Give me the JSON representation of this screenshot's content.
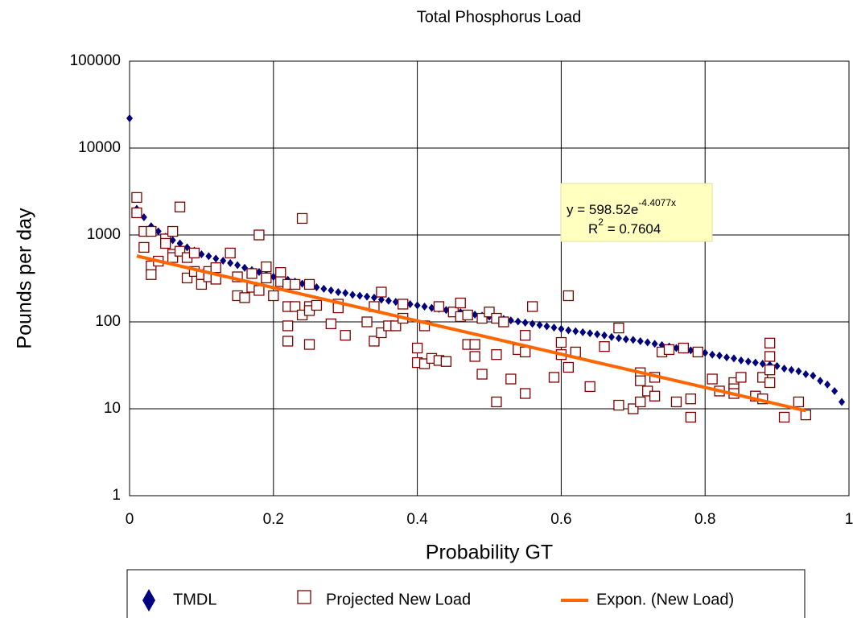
{
  "chart_data": {
    "type": "scatter",
    "title": "Total Phosphorus Load",
    "x_label": "Probability GT",
    "y_label": "Pounds per day",
    "xlim": [
      0,
      1
    ],
    "xticks": [
      0,
      0.2,
      0.4,
      0.6,
      0.8,
      1
    ],
    "ylim": [
      1,
      100000
    ],
    "yticks": [
      1,
      10,
      100,
      1000,
      10000,
      100000
    ],
    "log_y": true,
    "grid": true,
    "legend_position": "bottom",
    "annotation": {
      "equation": "y = 598.52e",
      "exponent": "-4.4077x",
      "r_label": "R",
      "r_power": "2",
      "r_value": " = 0.7604"
    },
    "series": [
      {
        "name": "TMDL",
        "color": "#000080",
        "marker": "diamond",
        "x": [
          0,
          0.01,
          0.02,
          0.03,
          0.04,
          0.05,
          0.06,
          0.07,
          0.08,
          0.09,
          0.1,
          0.11,
          0.12,
          0.13,
          0.14,
          0.15,
          0.16,
          0.17,
          0.18,
          0.19,
          0.2,
          0.21,
          0.22,
          0.23,
          0.24,
          0.25,
          0.26,
          0.27,
          0.28,
          0.29,
          0.3,
          0.31,
          0.32,
          0.33,
          0.34,
          0.35,
          0.36,
          0.37,
          0.38,
          0.39,
          0.4,
          0.41,
          0.42,
          0.43,
          0.44,
          0.45,
          0.46,
          0.47,
          0.48,
          0.49,
          0.5,
          0.51,
          0.52,
          0.53,
          0.54,
          0.55,
          0.56,
          0.57,
          0.58,
          0.59,
          0.6,
          0.61,
          0.62,
          0.63,
          0.64,
          0.65,
          0.66,
          0.67,
          0.68,
          0.69,
          0.7,
          0.71,
          0.72,
          0.73,
          0.74,
          0.75,
          0.76,
          0.77,
          0.78,
          0.79,
          0.8,
          0.81,
          0.82,
          0.83,
          0.84,
          0.85,
          0.86,
          0.87,
          0.88,
          0.89,
          0.9,
          0.91,
          0.92,
          0.93,
          0.94,
          0.95,
          0.96,
          0.97,
          0.98,
          0.99
        ],
        "values": [
          22000,
          2000,
          1600,
          1260,
          1100,
          955,
          870,
          800,
          720,
          660,
          600,
          570,
          535,
          505,
          475,
          450,
          420,
          395,
          375,
          350,
          330,
          320,
          305,
          290,
          275,
          265,
          250,
          240,
          230,
          220,
          215,
          205,
          200,
          195,
          190,
          180,
          175,
          170,
          165,
          160,
          155,
          150,
          145,
          141,
          137,
          133,
          129,
          125,
          121,
          118,
          115,
          111,
          108,
          104,
          101,
          98,
          95,
          92,
          89,
          86,
          83,
          80,
          78,
          76,
          74,
          72,
          70,
          67,
          65,
          63,
          62,
          60,
          58,
          56,
          54,
          52,
          50,
          48,
          47,
          45,
          44,
          42,
          41,
          39,
          38,
          36,
          35,
          34,
          33,
          32,
          31,
          29,
          28,
          27,
          25,
          24,
          21,
          19,
          16,
          12
        ]
      },
      {
        "name": "Projected New Load",
        "color": "#800000",
        "marker": "square",
        "x": [
          0.01,
          0.01,
          0.02,
          0.02,
          0.03,
          0.03,
          0.03,
          0.04,
          0.05,
          0.05,
          0.06,
          0.06,
          0.06,
          0.07,
          0.07,
          0.08,
          0.08,
          0.09,
          0.09,
          0.1,
          0.1,
          0.11,
          0.11,
          0.12,
          0.12,
          0.14,
          0.15,
          0.15,
          0.16,
          0.17,
          0.17,
          0.18,
          0.18,
          0.19,
          0.19,
          0.2,
          0.21,
          0.21,
          0.22,
          0.22,
          0.22,
          0.22,
          0.23,
          0.23,
          0.24,
          0.24,
          0.25,
          0.25,
          0.25,
          0.25,
          0.26,
          0.28,
          0.29,
          0.29,
          0.3,
          0.33,
          0.34,
          0.34,
          0.35,
          0.35,
          0.36,
          0.37,
          0.38,
          0.38,
          0.4,
          0.4,
          0.41,
          0.41,
          0.42,
          0.43,
          0.43,
          0.44,
          0.45,
          0.46,
          0.46,
          0.47,
          0.47,
          0.48,
          0.48,
          0.49,
          0.49,
          0.5,
          0.51,
          0.51,
          0.51,
          0.52,
          0.53,
          0.54,
          0.55,
          0.55,
          0.55,
          0.56,
          0.59,
          0.6,
          0.6,
          0.61,
          0.61,
          0.62,
          0.64,
          0.66,
          0.68,
          0.68,
          0.7,
          0.71,
          0.71,
          0.71,
          0.72,
          0.73,
          0.73,
          0.74,
          0.75,
          0.76,
          0.77,
          0.78,
          0.78,
          0.79,
          0.81,
          0.82,
          0.84,
          0.84,
          0.84,
          0.85,
          0.87,
          0.88,
          0.88,
          0.89,
          0.89,
          0.89,
          0.89,
          0.91,
          0.93,
          0.94
        ],
        "values": [
          2700,
          1800,
          1100,
          720,
          1100,
          440,
          350,
          500,
          900,
          800,
          1100,
          600,
          550,
          2100,
          650,
          550,
          320,
          620,
          380,
          350,
          270,
          380,
          330,
          420,
          310,
          620,
          330,
          200,
          190,
          360,
          250,
          1000,
          230,
          430,
          320,
          200,
          370,
          290,
          270,
          150,
          90,
          60,
          150,
          270,
          1550,
          120,
          270,
          150,
          135,
          55,
          155,
          95,
          160,
          145,
          70,
          100,
          150,
          60,
          220,
          75,
          90,
          90,
          160,
          110,
          50,
          34,
          33,
          90,
          38,
          36,
          150,
          35,
          130,
          165,
          115,
          120,
          55,
          55,
          40,
          110,
          25,
          130,
          110,
          42,
          12,
          100,
          22,
          48,
          70,
          45,
          15,
          150,
          23,
          58,
          42,
          200,
          30,
          45,
          18,
          52,
          85,
          11,
          10,
          26,
          21,
          12,
          16,
          14,
          23,
          45,
          48,
          12,
          50,
          13,
          8,
          45,
          22,
          16,
          20,
          17,
          15,
          23,
          14,
          23,
          13,
          57,
          40,
          28,
          20,
          8,
          12,
          8.5
        ]
      },
      {
        "name": "Expon. (New Load)",
        "color": "#ff6600",
        "marker": "line",
        "x": [
          0.01,
          0.94
        ],
        "values": [
          573,
          9.5
        ]
      }
    ]
  }
}
